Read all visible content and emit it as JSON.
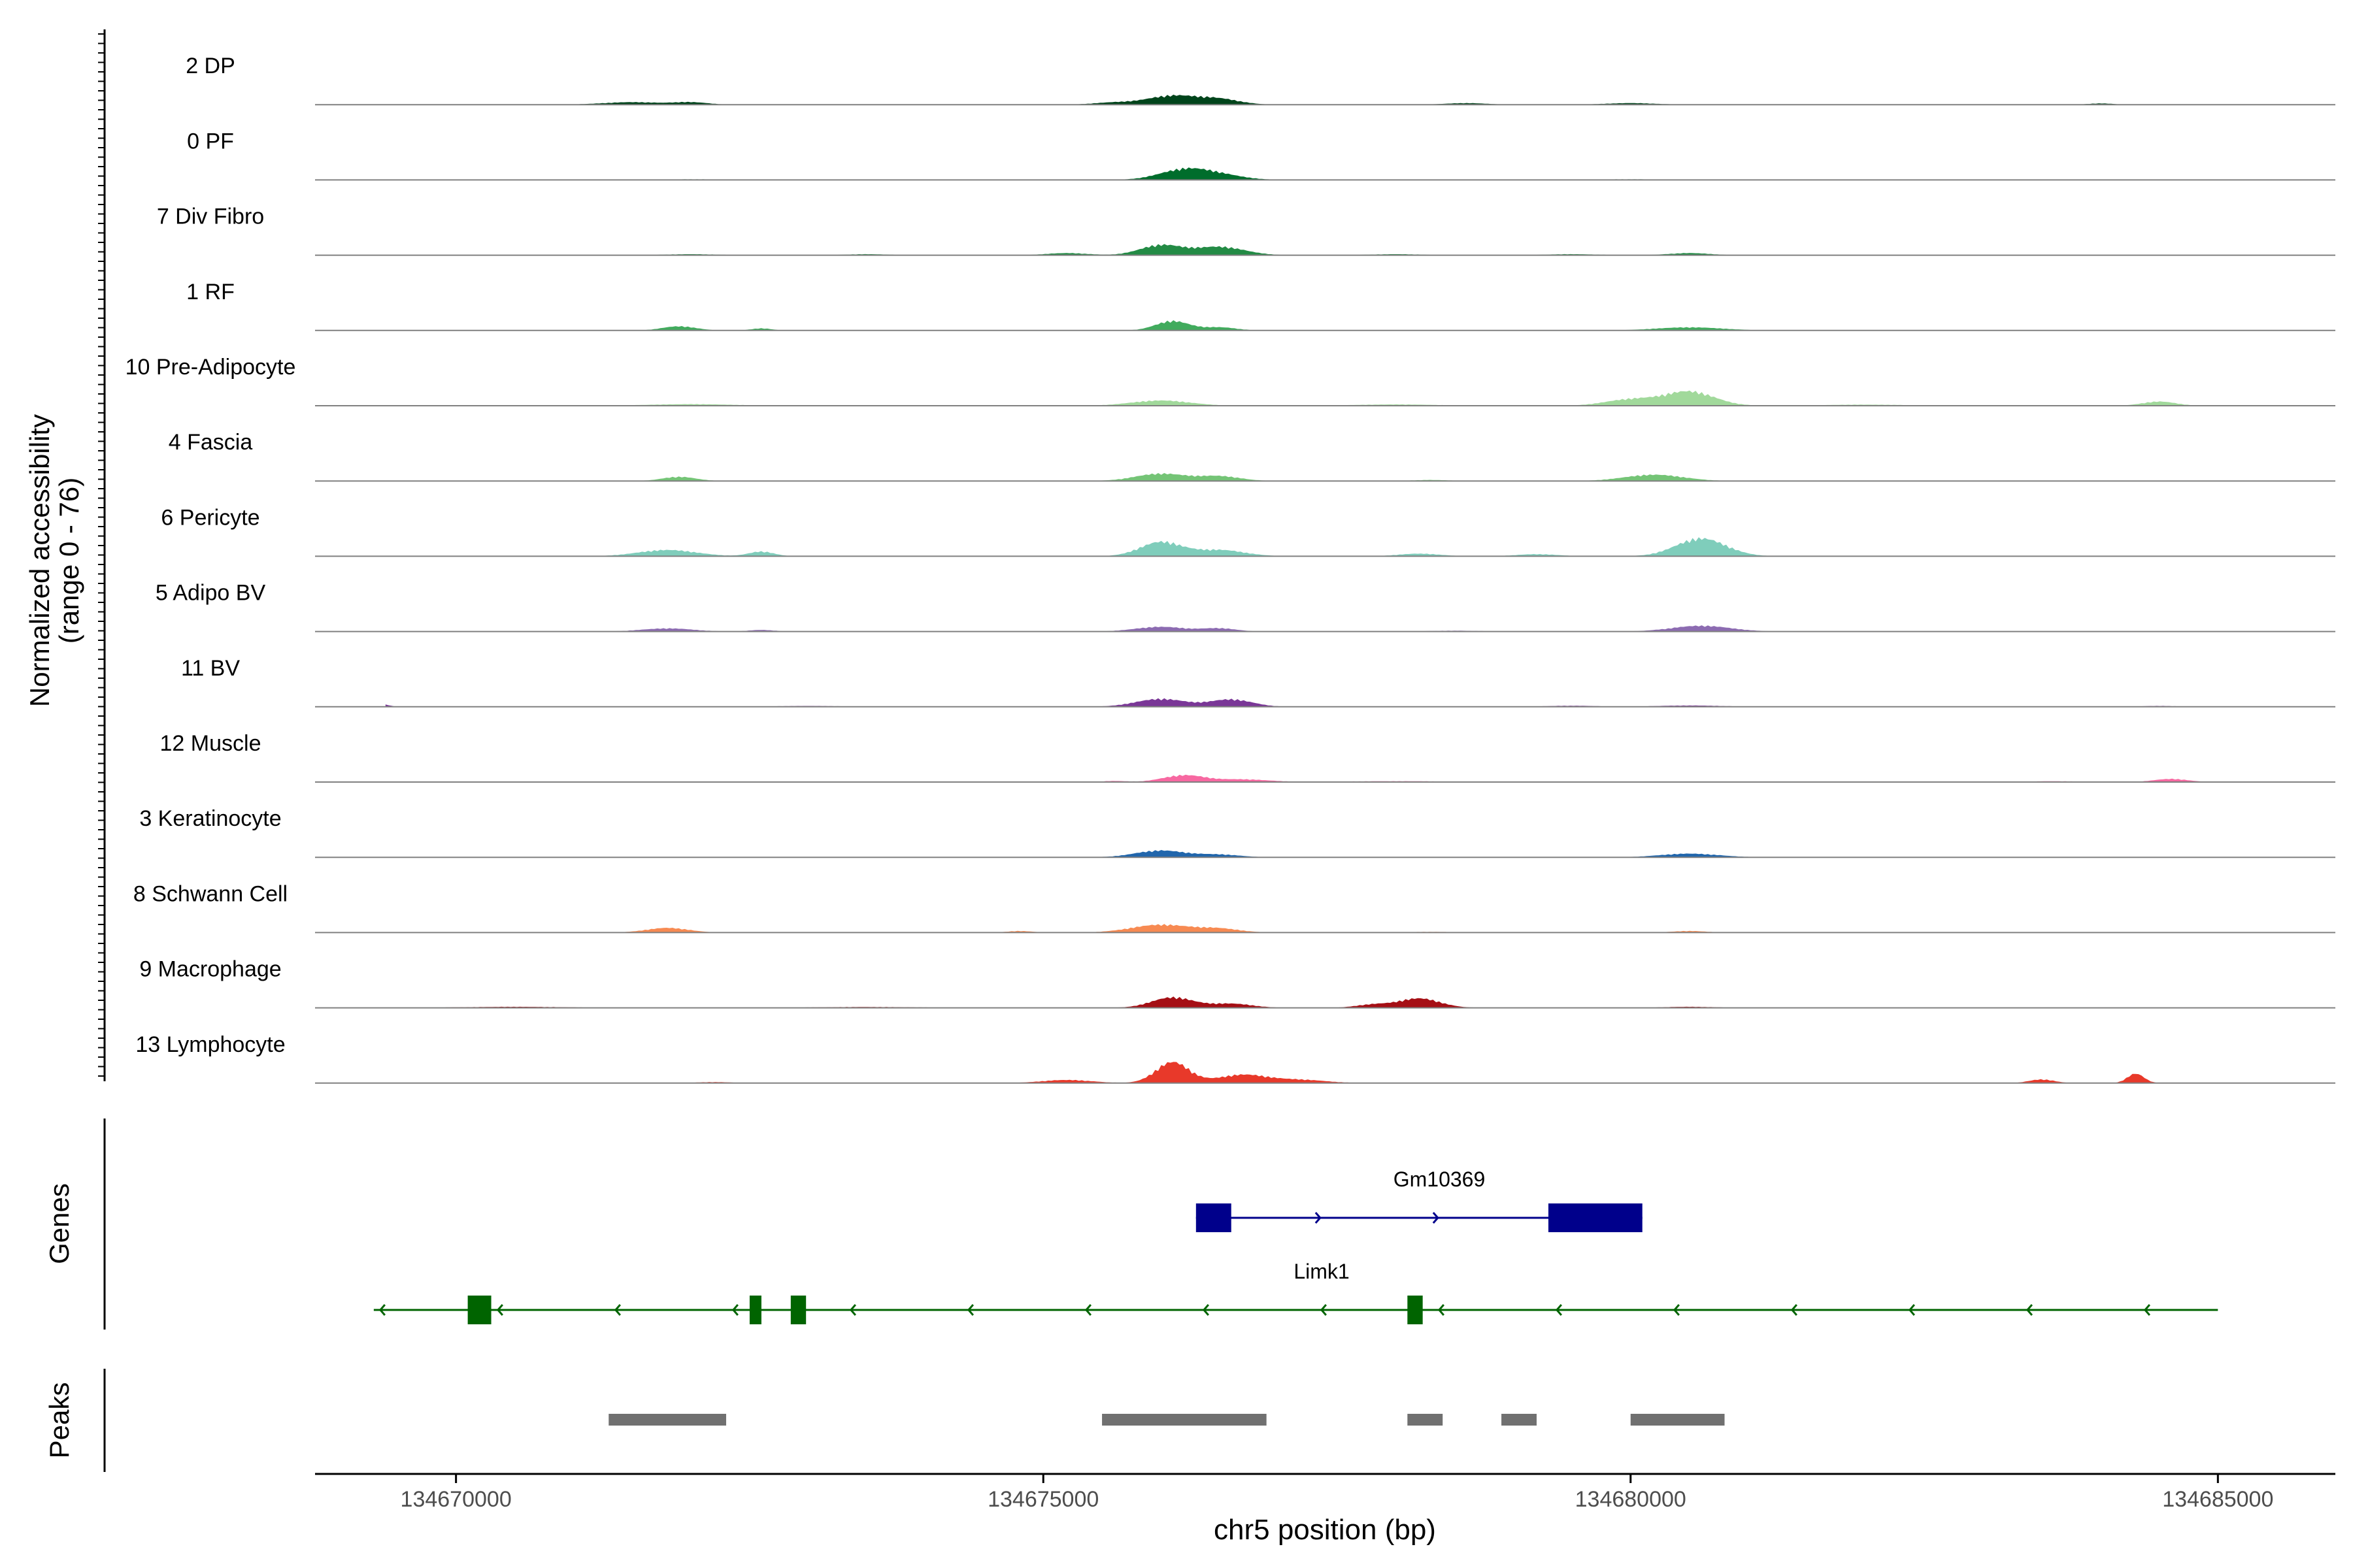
{
  "chart_data": {
    "type": "area",
    "title": "",
    "region": "chr5:134669300-134685100",
    "xlabel": "chr5 position (bp)",
    "xlim": [
      134668800,
      134686000
    ],
    "xticks": [
      134670000,
      134675000,
      134680000,
      134685000
    ],
    "xtick_labels": [
      "134670000",
      "134675000",
      "134680000",
      "134685000"
    ],
    "ylabel_line1": "Normalized accessibility",
    "ylabel_line2": "(range 0 - 76)",
    "ylim": [
      0,
      76
    ],
    "panel_labels": {
      "genes": "Genes",
      "peaks": "Peaks"
    },
    "series": [
      {
        "name": "2 DP",
        "color": "#00441b",
        "peaks": [
          [
            134671500,
            2.4,
            350
          ],
          [
            134672000,
            2.2,
            200
          ],
          [
            134676100,
            8.5,
            300
          ],
          [
            134676500,
            5.0,
            250
          ],
          [
            134675600,
            2.0,
            250
          ],
          [
            134678600,
            1.5,
            250
          ],
          [
            134680000,
            1.5,
            300
          ],
          [
            134684000,
            1.2,
            150
          ]
        ]
      },
      {
        "name": "0 PF",
        "color": "#006d2c",
        "peaks": [
          [
            134676200,
            9.5,
            300
          ],
          [
            134676500,
            4.0,
            300
          ],
          [
            134672000,
            0.6,
            500
          ],
          [
            134680000,
            0.6,
            500
          ],
          [
            134683500,
            0.5,
            500
          ]
        ]
      },
      {
        "name": "7 Div Fibro",
        "color": "#238b45",
        "peaks": [
          [
            134676000,
            9.5,
            250
          ],
          [
            134676500,
            8.0,
            300
          ],
          [
            134675200,
            2.0,
            250
          ],
          [
            134672000,
            1.0,
            300
          ],
          [
            134673500,
            1.0,
            250
          ],
          [
            134678000,
            1.0,
            300
          ],
          [
            134679500,
            1.0,
            300
          ],
          [
            134680500,
            2.0,
            250
          ]
        ]
      },
      {
        "name": "1 RF",
        "color": "#41ab5d",
        "peaks": [
          [
            134671900,
            4.0,
            200
          ],
          [
            134672600,
            2.0,
            120
          ],
          [
            134676100,
            9.0,
            200
          ],
          [
            134676500,
            3.0,
            200
          ],
          [
            134680500,
            3.0,
            400
          ]
        ]
      },
      {
        "name": "10 Pre-Adipocyte",
        "color": "#a1d99b",
        "peaks": [
          [
            134676000,
            5.0,
            350
          ],
          [
            134680500,
            13.5,
            300
          ],
          [
            134680000,
            6.0,
            300
          ],
          [
            134684500,
            4.0,
            200
          ],
          [
            134672000,
            1.5,
            500
          ],
          [
            134678000,
            1.2,
            500
          ],
          [
            134682000,
            1.0,
            500
          ]
        ]
      },
      {
        "name": "4 Fascia",
        "color": "#74c476",
        "peaks": [
          [
            134671900,
            4.0,
            200
          ],
          [
            134676000,
            7.0,
            300
          ],
          [
            134676500,
            4.5,
            250
          ],
          [
            134680200,
            6.0,
            350
          ],
          [
            134678300,
            1.0,
            200
          ]
        ]
      },
      {
        "name": "6 Pericyte",
        "color": "#7fcdbb",
        "peaks": [
          [
            134671800,
            6.0,
            350
          ],
          [
            134672600,
            4.5,
            150
          ],
          [
            134676000,
            13.5,
            250
          ],
          [
            134676500,
            6.0,
            300
          ],
          [
            134680600,
            17.0,
            300
          ],
          [
            134678200,
            2.5,
            250
          ],
          [
            134679200,
            2.0,
            250
          ]
        ]
      },
      {
        "name": "5 Adipo BV",
        "color": "#8c6bb1",
        "peaks": [
          [
            134671800,
            3.0,
            300
          ],
          [
            134672600,
            1.5,
            150
          ],
          [
            134676000,
            4.5,
            300
          ],
          [
            134676500,
            3.0,
            200
          ],
          [
            134680600,
            5.5,
            350
          ],
          [
            134678500,
            0.8,
            300
          ]
        ]
      },
      {
        "name": "11 BV",
        "color": "#7a3797",
        "peaks": [
          [
            134676000,
            7.5,
            300
          ],
          [
            134676600,
            7.0,
            250
          ],
          [
            134669400,
            2.0,
            60
          ],
          [
            134673000,
            0.8,
            400
          ],
          [
            134679500,
            1.0,
            300
          ],
          [
            134680500,
            1.2,
            400
          ],
          [
            134684500,
            0.8,
            200
          ]
        ]
      },
      {
        "name": "12 Muscle",
        "color": "#f768a1",
        "peaks": [
          [
            134676200,
            6.5,
            250
          ],
          [
            134676700,
            2.5,
            300
          ],
          [
            134684600,
            3.0,
            200
          ],
          [
            134675600,
            1.0,
            150
          ],
          [
            134678000,
            0.8,
            700
          ],
          [
            134683600,
            0.8,
            300
          ]
        ]
      },
      {
        "name": "3 Keratinocyte",
        "color": "#2166ac",
        "peaks": [
          [
            134676000,
            6.5,
            300
          ],
          [
            134676500,
            2.5,
            250
          ],
          [
            134680500,
            3.5,
            350
          ],
          [
            134672000,
            0.4,
            800
          ],
          [
            134678000,
            0.4,
            800
          ]
        ]
      },
      {
        "name": "8 Schwann Cell",
        "color": "#f78a52",
        "peaks": [
          [
            134671800,
            4.5,
            250
          ],
          [
            134676000,
            7.5,
            350
          ],
          [
            134676500,
            3.5,
            250
          ],
          [
            134674800,
            1.5,
            150
          ],
          [
            134680500,
            1.5,
            200
          ],
          [
            134678300,
            0.7,
            300
          ]
        ]
      },
      {
        "name": "9 Macrophage",
        "color": "#a50f15",
        "peaks": [
          [
            134676100,
            10.0,
            250
          ],
          [
            134676600,
            4.0,
            250
          ],
          [
            134678200,
            9.0,
            250
          ],
          [
            134677800,
            3.0,
            200
          ],
          [
            134670500,
            1.0,
            600
          ],
          [
            134673500,
            0.8,
            600
          ],
          [
            134680500,
            1.0,
            300
          ]
        ]
      },
      {
        "name": "13 Lymphocyte",
        "color": "#e8392a",
        "peaks": [
          [
            134676100,
            20.0,
            200
          ],
          [
            134676700,
            8.0,
            300
          ],
          [
            134675200,
            3.0,
            300
          ],
          [
            134677200,
            3.0,
            300
          ],
          [
            134684300,
            9.0,
            100
          ],
          [
            134683500,
            3.5,
            150
          ],
          [
            134672200,
            1.0,
            200
          ]
        ]
      }
    ],
    "genes": [
      {
        "name": "Gm10369",
        "strand": "+",
        "color": "#00008b",
        "start": 134676300,
        "end": 134680100,
        "exons": [
          [
            134676300,
            134676600
          ],
          [
            134679300,
            134680100
          ]
        ]
      },
      {
        "name": "Limk1",
        "strand": "-",
        "color": "#006400",
        "start": 134669300,
        "end": 134685000,
        "exons": [
          [
            134670100,
            134670300
          ],
          [
            134672500,
            134672600
          ],
          [
            134672850,
            134672980
          ],
          [
            134678100,
            134678230
          ]
        ]
      }
    ],
    "peak_regions": [
      [
        134671300,
        134672300
      ],
      [
        134675500,
        134676900
      ],
      [
        134678100,
        134678400
      ],
      [
        134678900,
        134679200
      ],
      [
        134680000,
        134680800
      ]
    ]
  }
}
